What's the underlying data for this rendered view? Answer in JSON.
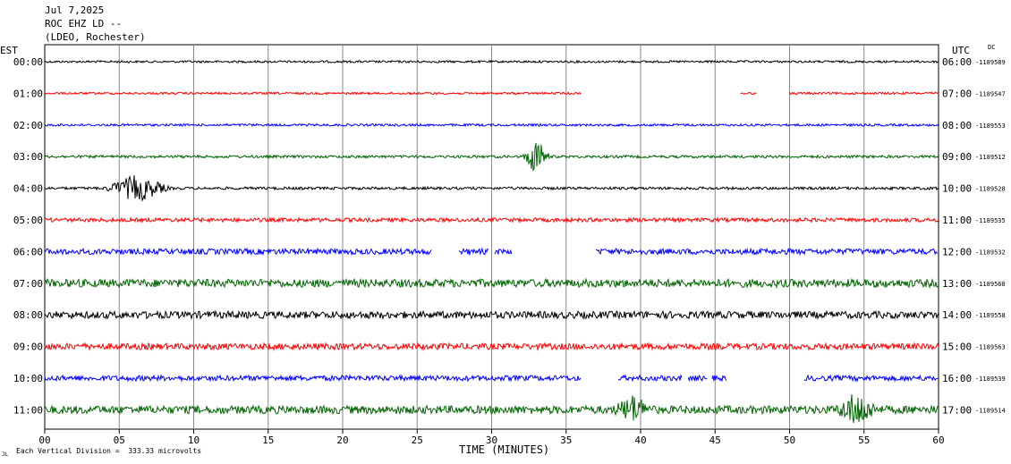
{
  "header": {
    "date": "Jul 7,2025",
    "station": "ROC EHZ LD --",
    "network": "(LDEO, Rochester)"
  },
  "left_axis_label": "EST",
  "right_axis_label": "UTC",
  "dc_label": "DC",
  "footer": {
    "scale_note": "Each Vertical Division =  333.33 microvolts",
    "small_mark": "JL"
  },
  "chart_data": {
    "type": "line",
    "title": "",
    "xlabel": "TIME (MINUTES)",
    "xlim": [
      0,
      60
    ],
    "x_ticks": [
      "00",
      "05",
      "10",
      "15",
      "20",
      "25",
      "30",
      "35",
      "40",
      "45",
      "50",
      "55",
      "60"
    ],
    "grid": true,
    "colors": [
      "#000000",
      "#ff0000",
      "#0000ff",
      "#006400"
    ],
    "rows": [
      {
        "est": "00:00",
        "utc": "06:00",
        "dc": "-1189589",
        "color": "#000000",
        "amp": 1.2,
        "segments": [
          [
            0,
            60
          ]
        ]
      },
      {
        "est": "01:00",
        "utc": "07:00",
        "dc": "-1189547",
        "color": "#ff0000",
        "amp": 1.2,
        "segments": [
          [
            0,
            36
          ],
          [
            46.7,
            47.8
          ],
          [
            50,
            60
          ]
        ]
      },
      {
        "est": "02:00",
        "utc": "08:00",
        "dc": "-1189553",
        "color": "#0000ff",
        "amp": 1.3,
        "segments": [
          [
            0,
            60
          ]
        ]
      },
      {
        "est": "03:00",
        "utc": "09:00",
        "dc": "-1189512",
        "color": "#006400",
        "amp": 1.5,
        "segments": [
          [
            0,
            60
          ]
        ]
      },
      {
        "est": "04:00",
        "utc": "10:00",
        "dc": "-1189528",
        "color": "#000000",
        "amp": 1.5,
        "segments": [
          [
            0,
            60
          ]
        ]
      },
      {
        "est": "05:00",
        "utc": "11:00",
        "dc": "-1189535",
        "color": "#ff0000",
        "amp": 2.2,
        "segments": [
          [
            0,
            60
          ]
        ]
      },
      {
        "est": "06:00",
        "utc": "12:00",
        "dc": "-1189532",
        "color": "#0000ff",
        "amp": 3.2,
        "segments": [
          [
            0,
            26
          ],
          [
            27.8,
            29.8
          ],
          [
            30.2,
            31.4
          ],
          [
            37,
            60
          ]
        ]
      },
      {
        "est": "07:00",
        "utc": "13:00",
        "dc": "-1189568",
        "color": "#006400",
        "amp": 4.5,
        "segments": [
          [
            0,
            60
          ]
        ]
      },
      {
        "est": "08:00",
        "utc": "14:00",
        "dc": "-1189558",
        "color": "#000000",
        "amp": 4.0,
        "segments": [
          [
            0,
            60
          ]
        ]
      },
      {
        "est": "09:00",
        "utc": "15:00",
        "dc": "-1189563",
        "color": "#ff0000",
        "amp": 3.5,
        "segments": [
          [
            0,
            60
          ]
        ]
      },
      {
        "est": "10:00",
        "utc": "16:00",
        "dc": "-1189539",
        "color": "#0000ff",
        "amp": 3.0,
        "segments": [
          [
            0,
            36
          ],
          [
            38.5,
            42.8
          ],
          [
            43.2,
            44.5
          ],
          [
            44.8,
            45.8
          ],
          [
            51,
            60
          ]
        ]
      },
      {
        "est": "11:00",
        "utc": "17:00",
        "dc": "-1189514",
        "color": "#006400",
        "amp": 4.5,
        "segments": [
          [
            0,
            60
          ]
        ]
      }
    ],
    "events": [
      {
        "row": 3,
        "minute": 33,
        "amp": 22,
        "width": 1.0
      },
      {
        "row": 4,
        "minute": 6.2,
        "amp": 16,
        "width": 2.5
      },
      {
        "row": 11,
        "minute": 39.5,
        "amp": 18,
        "width": 1.8
      },
      {
        "row": 11,
        "minute": 54.5,
        "amp": 22,
        "width": 1.8
      }
    ]
  }
}
